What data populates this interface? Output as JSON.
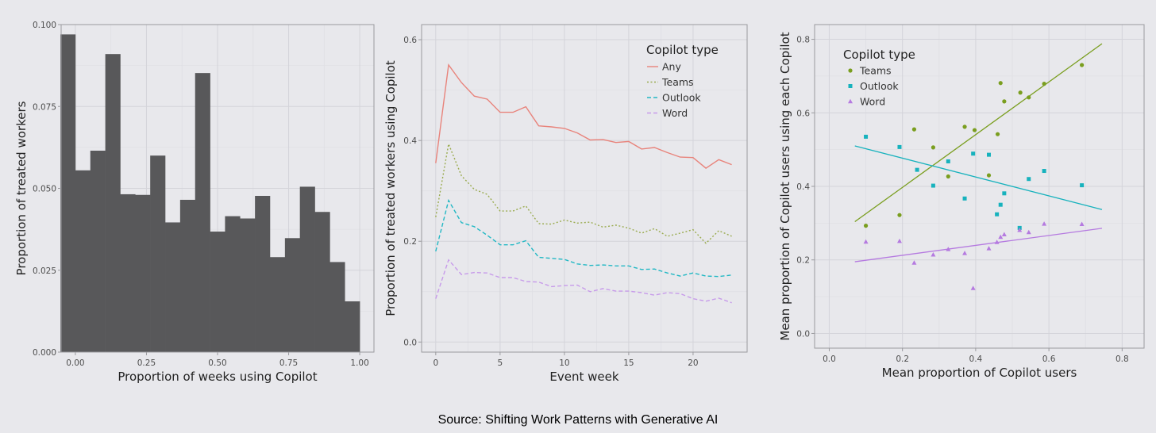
{
  "source": "Source:  Shifting Work Patterns with Generative AI",
  "chart_data": [
    {
      "type": "bar",
      "title": "",
      "xlabel": "Proportion of weeks using Copilot",
      "ylabel": "Proportion of treated workers",
      "xlim": [
        -0.05,
        1.05
      ],
      "ylim": [
        0,
        0.1
      ],
      "xticks": [
        "0.00",
        "0.25",
        "0.50",
        "0.75",
        "1.00"
      ],
      "yticks": [
        "0.000",
        "0.025",
        "0.050",
        "0.075",
        "0.100"
      ],
      "bin_width": 0.0526,
      "bar_color": "#58585a",
      "bins": [
        -0.0263,
        0.0263,
        0.0789,
        0.1316,
        0.1842,
        0.2368,
        0.2895,
        0.3421,
        0.3947,
        0.4474,
        0.5,
        0.5526,
        0.6053,
        0.6579,
        0.7105,
        0.7632,
        0.8158,
        0.8684,
        0.9211,
        0.9737
      ],
      "values": [
        0.097,
        0.0555,
        0.0615,
        0.091,
        0.0482,
        0.048,
        0.06,
        0.0396,
        0.0465,
        0.0852,
        0.0368,
        0.0415,
        0.0408,
        0.0477,
        0.029,
        0.0348,
        0.0505,
        0.0428,
        0.0275,
        0.0155
      ]
    },
    {
      "type": "line",
      "title": "",
      "xlabel": "Event week",
      "ylabel": "Proportion of treated workers using Copilot",
      "xlim": [
        -1.1,
        24.2
      ],
      "ylim": [
        -0.02,
        0.63
      ],
      "xticks": [
        "0",
        "5",
        "10",
        "15",
        "20"
      ],
      "yticks": [
        "0.0",
        "0.2",
        "0.4",
        "0.6"
      ],
      "legend_title": "Copilot type",
      "legend_position": "top-right",
      "x": [
        0,
        1,
        2,
        3,
        4,
        5,
        6,
        7,
        8,
        9,
        10,
        11,
        12,
        13,
        14,
        15,
        16,
        17,
        18,
        19,
        20,
        21,
        22,
        23
      ],
      "series": [
        {
          "name": "Any",
          "color": "#e8837b",
          "dash": "solid",
          "values": [
            0.355,
            0.55,
            0.515,
            0.488,
            0.482,
            0.456,
            0.456,
            0.467,
            0.429,
            0.427,
            0.424,
            0.415,
            0.401,
            0.402,
            0.396,
            0.398,
            0.383,
            0.386,
            0.376,
            0.367,
            0.366,
            0.345,
            0.362,
            0.352
          ]
        },
        {
          "name": "Teams",
          "color": "#9aab4f",
          "dash": "dotted",
          "values": [
            0.248,
            0.393,
            0.33,
            0.303,
            0.293,
            0.26,
            0.26,
            0.27,
            0.235,
            0.234,
            0.242,
            0.236,
            0.238,
            0.228,
            0.232,
            0.226,
            0.216,
            0.225,
            0.21,
            0.216,
            0.223,
            0.196,
            0.221,
            0.21
          ]
        },
        {
          "name": "Outlook",
          "color": "#22b8c4",
          "dash": "dashed",
          "values": [
            0.18,
            0.281,
            0.237,
            0.229,
            0.212,
            0.193,
            0.193,
            0.201,
            0.168,
            0.166,
            0.164,
            0.155,
            0.152,
            0.153,
            0.151,
            0.151,
            0.144,
            0.145,
            0.137,
            0.131,
            0.137,
            0.131,
            0.13,
            0.133
          ]
        },
        {
          "name": "Word",
          "color": "#c79bea",
          "dash": "dashed",
          "values": [
            0.086,
            0.163,
            0.134,
            0.138,
            0.137,
            0.128,
            0.128,
            0.12,
            0.119,
            0.11,
            0.112,
            0.113,
            0.1,
            0.106,
            0.101,
            0.101,
            0.098,
            0.093,
            0.098,
            0.096,
            0.086,
            0.081,
            0.087,
            0.078
          ]
        }
      ]
    },
    {
      "type": "scatter",
      "title": "",
      "xlabel": "Mean proportion of Copilot users",
      "ylabel": "Mean proportion of Copilot users using each Copilot",
      "xlim": [
        -0.04,
        0.86
      ],
      "ylim": [
        -0.04,
        0.84
      ],
      "xticks": [
        "0.0",
        "0.2",
        "0.4",
        "0.6",
        "0.8"
      ],
      "yticks": [
        "0.0",
        "0.2",
        "0.4",
        "0.6",
        "0.8"
      ],
      "legend_title": "Copilot type",
      "legend_position": "top-left",
      "series": [
        {
          "name": "Teams",
          "color": "#7a9e1f",
          "marker": "circle",
          "points": [
            [
              0.1,
              0.293
            ],
            [
              0.192,
              0.322
            ],
            [
              0.232,
              0.555
            ],
            [
              0.284,
              0.506
            ],
            [
              0.325,
              0.427
            ],
            [
              0.37,
              0.562
            ],
            [
              0.397,
              0.553
            ],
            [
              0.436,
              0.43
            ],
            [
              0.46,
              0.542
            ],
            [
              0.468,
              0.681
            ],
            [
              0.478,
              0.631
            ],
            [
              0.522,
              0.655
            ],
            [
              0.545,
              0.642
            ],
            [
              0.587,
              0.679
            ],
            [
              0.69,
              0.73
            ]
          ],
          "fit": [
            [
              0.07,
              0.304
            ],
            [
              0.745,
              0.788
            ]
          ]
        },
        {
          "name": "Outlook",
          "color": "#17b2bd",
          "marker": "square",
          "points": [
            [
              0.1,
              0.535
            ],
            [
              0.192,
              0.507
            ],
            [
              0.24,
              0.445
            ],
            [
              0.284,
              0.402
            ],
            [
              0.325,
              0.468
            ],
            [
              0.37,
              0.367
            ],
            [
              0.393,
              0.489
            ],
            [
              0.436,
              0.486
            ],
            [
              0.458,
              0.324
            ],
            [
              0.468,
              0.35
            ],
            [
              0.478,
              0.381
            ],
            [
              0.52,
              0.287
            ],
            [
              0.545,
              0.42
            ],
            [
              0.587,
              0.442
            ],
            [
              0.69,
              0.403
            ]
          ],
          "fit": [
            [
              0.07,
              0.51
            ],
            [
              0.745,
              0.337
            ]
          ]
        },
        {
          "name": "Word",
          "color": "#b57ae0",
          "marker": "triangle",
          "points": [
            [
              0.1,
              0.249
            ],
            [
              0.192,
              0.251
            ],
            [
              0.232,
              0.192
            ],
            [
              0.284,
              0.214
            ],
            [
              0.325,
              0.229
            ],
            [
              0.37,
              0.218
            ],
            [
              0.393,
              0.123
            ],
            [
              0.436,
              0.231
            ],
            [
              0.458,
              0.248
            ],
            [
              0.468,
              0.262
            ],
            [
              0.478,
              0.269
            ],
            [
              0.52,
              0.281
            ],
            [
              0.545,
              0.275
            ],
            [
              0.587,
              0.298
            ],
            [
              0.69,
              0.297
            ]
          ],
          "fit": [
            [
              0.07,
              0.195
            ],
            [
              0.745,
              0.286
            ]
          ]
        }
      ]
    }
  ]
}
